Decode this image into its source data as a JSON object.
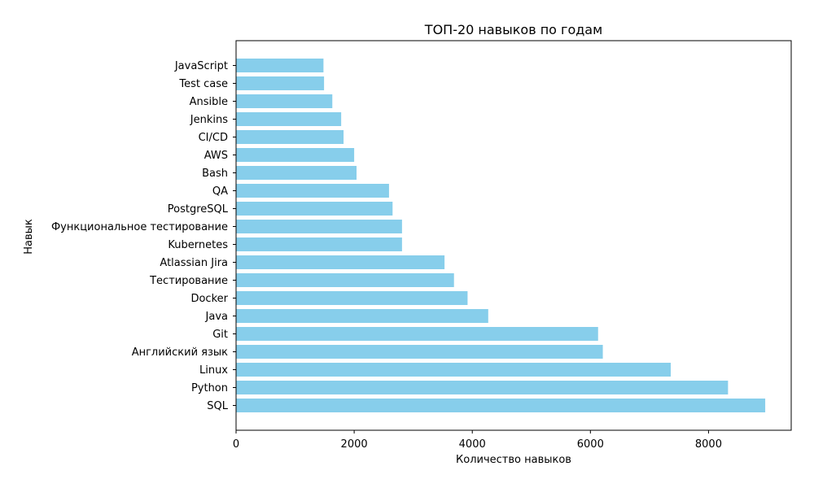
{
  "chart_data": {
    "type": "bar",
    "orientation": "horizontal",
    "title": "ТОП-20 навыков по годам",
    "xlabel": "Количество навыков",
    "ylabel": "Навык",
    "categories": [
      "SQL",
      "Python",
      "Linux",
      "Английский язык",
      "Git",
      "Java",
      "Docker",
      "Тестирование",
      "Atlassian Jira",
      "Kubernetes",
      "Функциональное тестирование",
      "PostgreSQL",
      "QA",
      "Bash",
      "AWS",
      "CI/CD",
      "Jenkins",
      "Ansible",
      "Test case",
      "JavaScript"
    ],
    "values": [
      8960,
      8330,
      7360,
      6210,
      6130,
      4270,
      3920,
      3690,
      3530,
      2810,
      2810,
      2650,
      2590,
      2040,
      2000,
      1820,
      1780,
      1630,
      1490,
      1480
    ],
    "xlim": [
      0,
      9400
    ],
    "xticks": [
      0,
      2000,
      4000,
      6000,
      8000
    ],
    "grid": false,
    "bar_color": "#87CEEB"
  }
}
